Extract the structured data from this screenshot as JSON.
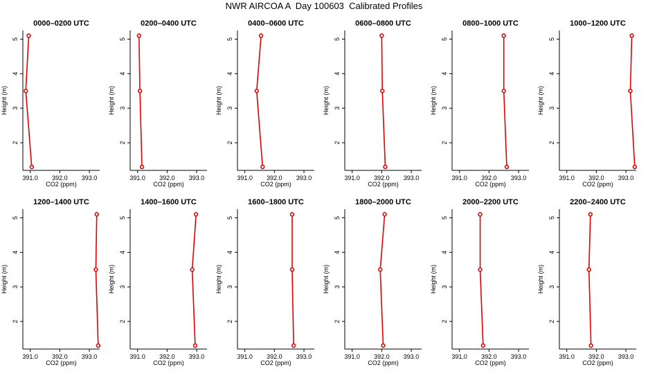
{
  "title": "NWR AIRCOA A  Day 100603  Calibrated Profiles",
  "colors": {
    "series": "#e00000",
    "axis": "#000000",
    "background": "#ffffff"
  },
  "chart_data": [
    {
      "type": "line",
      "title": "0000–0200 UTC",
      "xlabel": "CO2 (ppm)",
      "ylabel": "Height (m)",
      "xlim": [
        390.75,
        393.35
      ],
      "ylim": [
        1.2,
        5.25
      ],
      "xticks": [
        "391.0",
        "392.0",
        "393.0"
      ],
      "yticks": [
        "2",
        "3",
        "4",
        "5"
      ],
      "x": [
        390.95,
        390.85,
        391.05
      ],
      "y": [
        5.1,
        3.5,
        1.3
      ]
    },
    {
      "type": "line",
      "title": "0200–0400 UTC",
      "xlabel": "CO2 (ppm)",
      "ylabel": "Height (m)",
      "xlim": [
        390.75,
        393.35
      ],
      "ylim": [
        1.2,
        5.25
      ],
      "xticks": [
        "391.0",
        "392.0",
        "393.0"
      ],
      "yticks": [
        "2",
        "3",
        "4",
        "5"
      ],
      "x": [
        391.05,
        391.08,
        391.15
      ],
      "y": [
        5.1,
        3.5,
        1.3
      ]
    },
    {
      "type": "line",
      "title": "0400–0600 UTC",
      "xlabel": "CO2 (ppm)",
      "ylabel": "Height (m)",
      "xlim": [
        390.75,
        393.35
      ],
      "ylim": [
        1.2,
        5.25
      ],
      "xticks": [
        "391.0",
        "392.0",
        "393.0"
      ],
      "yticks": [
        "2",
        "3",
        "4",
        "5"
      ],
      "x": [
        391.55,
        391.4,
        391.6
      ],
      "y": [
        5.1,
        3.5,
        1.3
      ]
    },
    {
      "type": "line",
      "title": "0600–0800 UTC",
      "xlabel": "CO2 (ppm)",
      "ylabel": "Height (m)",
      "xlim": [
        390.75,
        393.35
      ],
      "ylim": [
        1.2,
        5.25
      ],
      "xticks": [
        "391.0",
        "392.0",
        "393.0"
      ],
      "yticks": [
        "2",
        "3",
        "4",
        "5"
      ],
      "x": [
        392.0,
        392.02,
        392.12
      ],
      "y": [
        5.1,
        3.5,
        1.3
      ]
    },
    {
      "type": "line",
      "title": "0800–1000 UTC",
      "xlabel": "CO2 (ppm)",
      "ylabel": "Height (m)",
      "xlim": [
        390.75,
        393.35
      ],
      "ylim": [
        1.2,
        5.25
      ],
      "xticks": [
        "391.0",
        "392.0",
        "393.0"
      ],
      "yticks": [
        "2",
        "3",
        "4",
        "5"
      ],
      "x": [
        392.5,
        392.5,
        392.6
      ],
      "y": [
        5.1,
        3.5,
        1.3
      ]
    },
    {
      "type": "line",
      "title": "1000–1200 UTC",
      "xlabel": "CO2 (ppm)",
      "ylabel": "Height (m)",
      "xlim": [
        390.75,
        393.35
      ],
      "ylim": [
        1.2,
        5.25
      ],
      "xticks": [
        "391.0",
        "392.0",
        "393.0"
      ],
      "yticks": [
        "2",
        "3",
        "4",
        "5"
      ],
      "x": [
        393.2,
        393.15,
        393.3
      ],
      "y": [
        5.1,
        3.5,
        1.3
      ]
    },
    {
      "type": "line",
      "title": "1200–1400 UTC",
      "xlabel": "CO2 (ppm)",
      "ylabel": "Height (m)",
      "xlim": [
        390.75,
        393.35
      ],
      "ylim": [
        1.2,
        5.25
      ],
      "xticks": [
        "391.0",
        "392.0",
        "393.0"
      ],
      "yticks": [
        "2",
        "3",
        "4",
        "5"
      ],
      "x": [
        393.25,
        393.22,
        393.3
      ],
      "y": [
        5.1,
        3.5,
        1.3
      ]
    },
    {
      "type": "line",
      "title": "1400–1600 UTC",
      "xlabel": "CO2 (ppm)",
      "ylabel": "Height (m)",
      "xlim": [
        390.75,
        393.35
      ],
      "ylim": [
        1.2,
        5.25
      ],
      "xticks": [
        "391.0",
        "392.0",
        "393.0"
      ],
      "yticks": [
        "2",
        "3",
        "4",
        "5"
      ],
      "x": [
        392.98,
        392.85,
        392.95
      ],
      "y": [
        5.1,
        3.5,
        1.3
      ]
    },
    {
      "type": "line",
      "title": "1600–1800 UTC",
      "xlabel": "CO2 (ppm)",
      "ylabel": "Height (m)",
      "xlim": [
        390.75,
        393.35
      ],
      "ylim": [
        1.2,
        5.25
      ],
      "xticks": [
        "391.0",
        "392.0",
        "393.0"
      ],
      "yticks": [
        "2",
        "3",
        "4",
        "5"
      ],
      "x": [
        392.6,
        392.6,
        392.65
      ],
      "y": [
        5.1,
        3.5,
        1.3
      ]
    },
    {
      "type": "line",
      "title": "1800–2000 UTC",
      "xlabel": "CO2 (ppm)",
      "ylabel": "Height (m)",
      "xlim": [
        390.75,
        393.35
      ],
      "ylim": [
        1.2,
        5.25
      ],
      "xticks": [
        "391.0",
        "392.0",
        "393.0"
      ],
      "yticks": [
        "2",
        "3",
        "4",
        "5"
      ],
      "x": [
        392.1,
        391.95,
        392.05
      ],
      "y": [
        5.1,
        3.5,
        1.3
      ]
    },
    {
      "type": "line",
      "title": "2000–2200 UTC",
      "xlabel": "CO2 (ppm)",
      "ylabel": "Height (m)",
      "xlim": [
        390.75,
        393.35
      ],
      "ylim": [
        1.2,
        5.25
      ],
      "xticks": [
        "391.0",
        "392.0",
        "393.0"
      ],
      "yticks": [
        "2",
        "3",
        "4",
        "5"
      ],
      "x": [
        391.7,
        391.7,
        391.8
      ],
      "y": [
        5.1,
        3.5,
        1.3
      ]
    },
    {
      "type": "line",
      "title": "2200–2400 UTC",
      "xlabel": "CO2 (ppm)",
      "ylabel": "Height (m)",
      "xlim": [
        390.75,
        393.35
      ],
      "ylim": [
        1.2,
        5.25
      ],
      "xticks": [
        "391.0",
        "392.0",
        "393.0"
      ],
      "yticks": [
        "2",
        "3",
        "4",
        "5"
      ],
      "x": [
        391.8,
        391.75,
        391.82
      ],
      "y": [
        5.1,
        3.5,
        1.3
      ]
    }
  ]
}
